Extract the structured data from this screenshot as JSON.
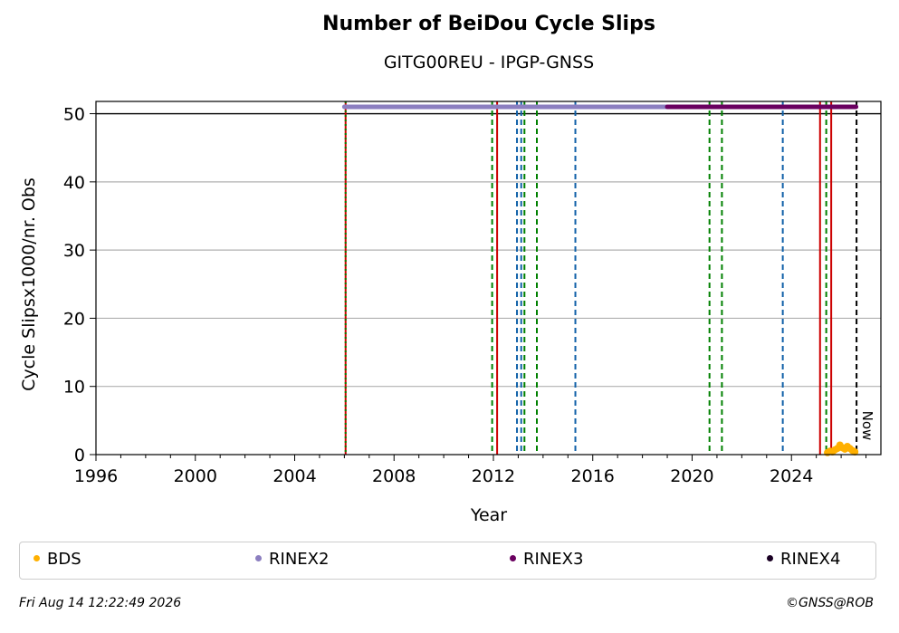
{
  "chart_data": {
    "type": "scatter",
    "title": "Number of BeiDou Cycle Slips",
    "subtitle": "GITG00REU - IPGP-GNSS",
    "xlabel": "Year",
    "ylabel": "Cycle Slipsx1000/nr. Obs",
    "xlim": [
      1996,
      2027.6
    ],
    "ylim": [
      0,
      51.8
    ],
    "xticks": [
      1996,
      2000,
      2004,
      2008,
      2012,
      2016,
      2020,
      2024
    ],
    "yticks": [
      0,
      10,
      20,
      30,
      40,
      50
    ],
    "grid": "horizontal",
    "hline": 50,
    "now_label": "Now",
    "now_year": 2026.62,
    "legend_position": "bottom",
    "series": [
      {
        "name": "BDS",
        "color": "#ffb000",
        "x": [
          2025.45,
          2025.55,
          2025.65,
          2025.75,
          2025.85,
          2025.95,
          2026.05,
          2026.15,
          2026.25,
          2026.35,
          2026.45,
          2026.55
        ],
        "y": [
          0.3,
          0.5,
          0.4,
          0.7,
          0.9,
          1.4,
          1.0,
          0.8,
          1.2,
          0.9,
          0.6,
          0.4
        ]
      },
      {
        "name": "RINEX2",
        "color": "#8c7fc0",
        "range": [
          2006.0,
          2019.0
        ],
        "y": 51
      },
      {
        "name": "RINEX3",
        "color": "#6a0060",
        "range": [
          2019.0,
          2026.6
        ],
        "y": 51
      },
      {
        "name": "RINEX4",
        "color": "#1a0024"
      }
    ],
    "events": [
      {
        "year": 2006.05,
        "color": "#cc0000",
        "style": "solid"
      },
      {
        "year": 2006.05,
        "color": "#008000",
        "style": "dotted"
      },
      {
        "year": 2011.95,
        "color": "#008000",
        "style": "dashed"
      },
      {
        "year": 2012.15,
        "color": "#cc0000",
        "style": "solid"
      },
      {
        "year": 2012.95,
        "color": "#1060a8",
        "style": "dashed"
      },
      {
        "year": 2013.12,
        "color": "#1060a8",
        "style": "dashed"
      },
      {
        "year": 2013.25,
        "color": "#008000",
        "style": "dashed"
      },
      {
        "year": 2013.75,
        "color": "#008000",
        "style": "dashed"
      },
      {
        "year": 2015.3,
        "color": "#1060a8",
        "style": "dashed"
      },
      {
        "year": 2020.7,
        "color": "#008000",
        "style": "dashed"
      },
      {
        "year": 2021.2,
        "color": "#008000",
        "style": "dashed"
      },
      {
        "year": 2023.65,
        "color": "#1060a8",
        "style": "dashed"
      },
      {
        "year": 2025.15,
        "color": "#cc0000",
        "style": "solid"
      },
      {
        "year": 2025.4,
        "color": "#008000",
        "style": "dashed"
      },
      {
        "year": 2025.6,
        "color": "#cc0000",
        "style": "solid"
      }
    ]
  },
  "legend": [
    {
      "label": "BDS",
      "color": "#ffb000"
    },
    {
      "label": "RINEX2",
      "color": "#8c7fc0"
    },
    {
      "label": "RINEX3",
      "color": "#6a0060"
    },
    {
      "label": "RINEX4",
      "color": "#1a0024"
    }
  ],
  "footer": {
    "date": "Fri Aug 14 12:22:49 2026",
    "credit": "©GNSS@ROB"
  }
}
